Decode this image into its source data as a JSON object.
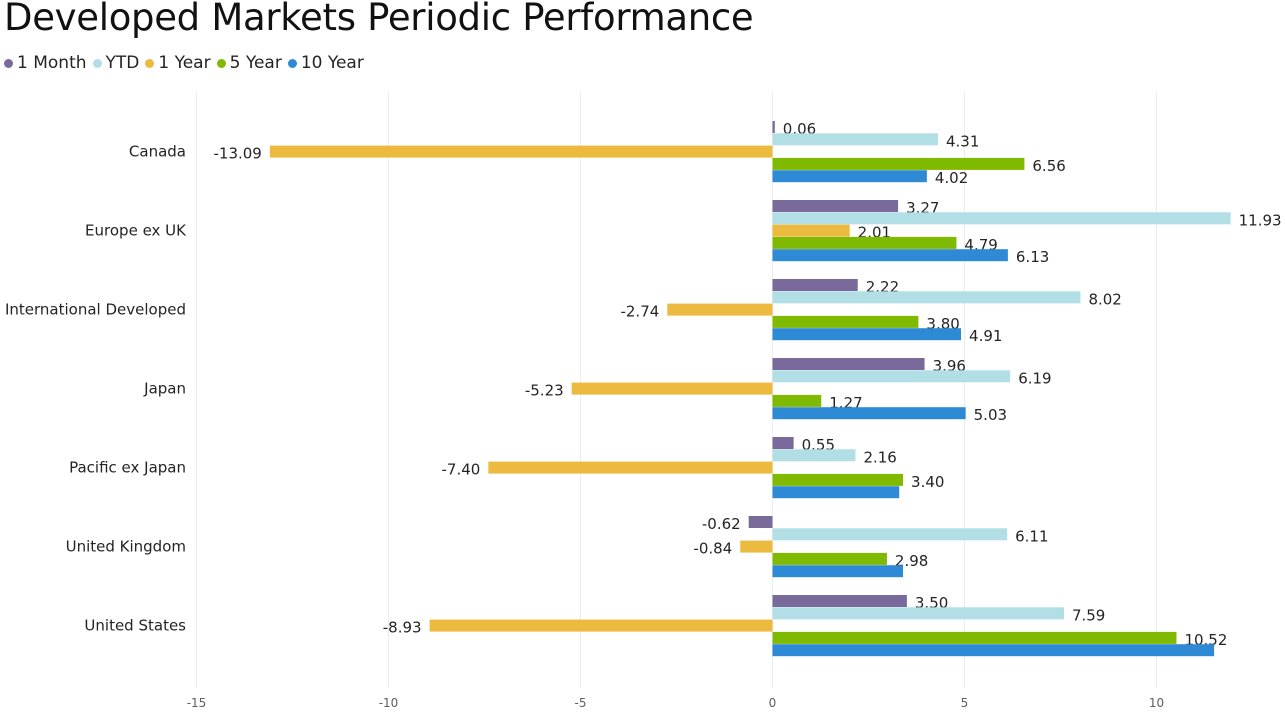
{
  "title": "Developed Markets Periodic Performance",
  "legend": [
    {
      "label": "1 Month",
      "color": "#7A6A9B"
    },
    {
      "label": "YTD",
      "color": "#B2DEE6"
    },
    {
      "label": "1 Year",
      "color": "#ECBA3F"
    },
    {
      "label": "5 Year",
      "color": "#7FBA00"
    },
    {
      "label": "10 Year",
      "color": "#2E8AD4"
    }
  ],
  "chart_data": {
    "type": "bar",
    "orientation": "horizontal",
    "categories": [
      "Canada",
      "Europe ex UK",
      "International Developed",
      "Japan",
      "Pacific ex Japan",
      "United Kingdom",
      "United States"
    ],
    "series": [
      {
        "name": "1 Month",
        "color": "#7A6A9B",
        "values": [
          0.06,
          3.27,
          2.22,
          3.96,
          0.55,
          -0.62,
          3.5
        ],
        "labels": [
          "0.06",
          "3.27",
          "2.22",
          "3.96",
          "0.55",
          "-0.62",
          "3.50"
        ]
      },
      {
        "name": "YTD",
        "color": "#B2DEE6",
        "values": [
          4.31,
          11.93,
          8.02,
          6.19,
          2.16,
          6.11,
          7.59
        ],
        "labels": [
          "4.31",
          "11.93",
          "8.02",
          "6.19",
          "2.16",
          "6.11",
          "7.59"
        ]
      },
      {
        "name": "1 Year",
        "color": "#ECBA3F",
        "values": [
          -13.09,
          2.01,
          -2.74,
          -5.23,
          -7.4,
          -0.84,
          -8.93
        ],
        "labels": [
          "-13.09",
          "2.01",
          "-2.74",
          "-5.23",
          "-7.40",
          "-0.84",
          "-8.93"
        ]
      },
      {
        "name": "5 Year",
        "color": "#7FBA00",
        "values": [
          6.56,
          4.79,
          3.8,
          1.27,
          3.4,
          2.98,
          10.52
        ],
        "labels": [
          "6.56",
          "4.79",
          "3.80",
          "1.27",
          "3.40",
          "2.98",
          "10.52"
        ]
      },
      {
        "name": "10 Year",
        "color": "#2E8AD4",
        "values": [
          4.02,
          6.13,
          4.91,
          5.03,
          3.3,
          3.4,
          11.5
        ],
        "labels": [
          "4.02",
          "6.13",
          "4.91",
          "5.03",
          null,
          null,
          null
        ]
      }
    ],
    "xlim": [
      -15,
      12
    ],
    "xticks": [
      -15,
      -10,
      -5,
      0,
      5,
      10
    ],
    "xtick_labels": [
      "-15",
      "-10",
      "-5",
      "0",
      "5",
      "10"
    ],
    "grid": true,
    "legend_position": "top-left"
  }
}
